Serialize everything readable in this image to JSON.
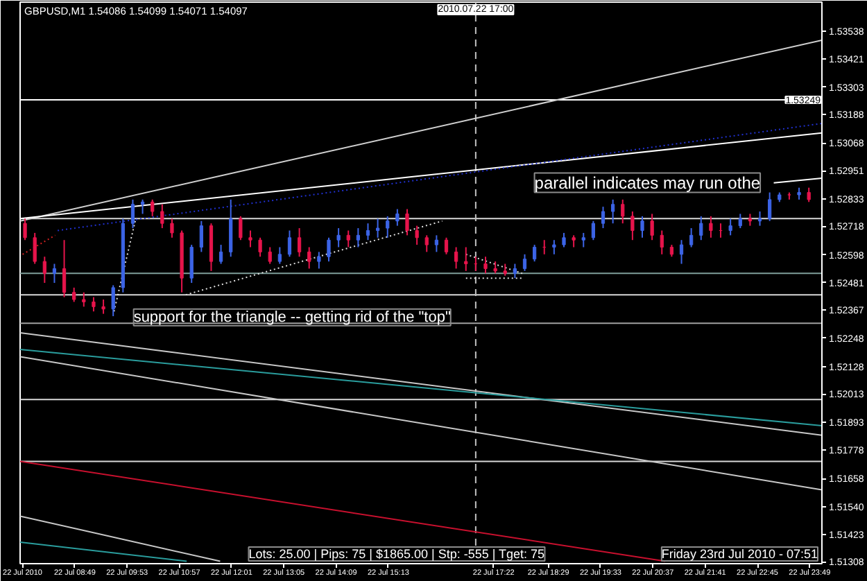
{
  "chart_data": {
    "type": "candlestick",
    "title": "GBPUSD,M1 1.54086 1.54099 1.54071 1.54097",
    "x": [
      "2010-07-22T07:48",
      "2010-07-22T08:00",
      "2010-07-22T08:12",
      "2010-07-22T08:24",
      "2010-07-22T08:36",
      "2010-07-22T08:48",
      "2010-07-22T09:00",
      "2010-07-22T09:12",
      "2010-07-22T09:24",
      "2010-07-22T09:36",
      "2010-07-22T09:48",
      "2010-07-22T10:00",
      "2010-07-22T10:12",
      "2010-07-22T10:24",
      "2010-07-22T10:36",
      "2010-07-22T10:48",
      "2010-07-22T11:00",
      "2010-07-22T11:12",
      "2010-07-22T11:24",
      "2010-07-22T11:36",
      "2010-07-22T11:48",
      "2010-07-22T12:00",
      "2010-07-22T12:12",
      "2010-07-22T12:24",
      "2010-07-22T12:36",
      "2010-07-22T12:48",
      "2010-07-22T13:00",
      "2010-07-22T13:12",
      "2010-07-22T13:24",
      "2010-07-22T13:36",
      "2010-07-22T13:48",
      "2010-07-22T14:00",
      "2010-07-22T14:12",
      "2010-07-22T14:24",
      "2010-07-22T14:36",
      "2010-07-22T14:48",
      "2010-07-22T15:00",
      "2010-07-22T15:12",
      "2010-07-22T15:24",
      "2010-07-22T15:36",
      "2010-07-22T15:48",
      "2010-07-22T16:00",
      "2010-07-22T16:12",
      "2010-07-22T16:24",
      "2010-07-22T16:36",
      "2010-07-22T16:48",
      "2010-07-22T17:00",
      "2010-07-22T17:12",
      "2010-07-22T17:24",
      "2010-07-22T17:36",
      "2010-07-22T17:48",
      "2010-07-22T18:00",
      "2010-07-22T18:12",
      "2010-07-22T18:24",
      "2010-07-22T18:36",
      "2010-07-22T18:48",
      "2010-07-22T19:00",
      "2010-07-22T19:12",
      "2010-07-22T19:24",
      "2010-07-22T19:36",
      "2010-07-22T19:48",
      "2010-07-22T20:00",
      "2010-07-22T20:12",
      "2010-07-22T20:24",
      "2010-07-22T20:36",
      "2010-07-22T20:48",
      "2010-07-22T21:00",
      "2010-07-22T21:12",
      "2010-07-22T21:24",
      "2010-07-22T21:36",
      "2010-07-22T21:48",
      "2010-07-22T22:00",
      "2010-07-22T22:12",
      "2010-07-22T22:24",
      "2010-07-22T22:36",
      "2010-07-22T22:48",
      "2010-07-22T23:00",
      "2010-07-22T23:12",
      "2010-07-22T23:24",
      "2010-07-22T23:36",
      "2010-07-22T23:48"
    ],
    "ohlc": [
      [
        1.5273,
        1.5275,
        1.5266,
        1.5267
      ],
      [
        1.5267,
        1.5269,
        1.5256,
        1.5257
      ],
      [
        1.5257,
        1.5259,
        1.5248,
        1.5252
      ],
      [
        1.5252,
        1.5256,
        1.5248,
        1.5254
      ],
      [
        1.5254,
        1.5266,
        1.5242,
        1.5244
      ],
      [
        1.5244,
        1.5246,
        1.524,
        1.5241
      ],
      [
        1.5241,
        1.5244,
        1.5238,
        1.524
      ],
      [
        1.524,
        1.5242,
        1.5236,
        1.5238
      ],
      [
        1.5238,
        1.5241,
        1.5235,
        1.5237
      ],
      [
        1.5237,
        1.5247,
        1.5234,
        1.5246
      ],
      [
        1.5246,
        1.5275,
        1.5244,
        1.5273
      ],
      [
        1.5273,
        1.5283,
        1.5271,
        1.5281
      ],
      [
        1.5281,
        1.5283,
        1.5277,
        1.5282
      ],
      [
        1.5282,
        1.5283,
        1.5276,
        1.5278
      ],
      [
        1.5278,
        1.5281,
        1.5271,
        1.5273
      ],
      [
        1.5273,
        1.5275,
        1.5267,
        1.5269
      ],
      [
        1.5269,
        1.527,
        1.5244,
        1.525
      ],
      [
        1.525,
        1.5264,
        1.5248,
        1.5263
      ],
      [
        1.5263,
        1.5274,
        1.5261,
        1.5272
      ],
      [
        1.5272,
        1.5273,
        1.5253,
        1.5257
      ],
      [
        1.5257,
        1.5264,
        1.5256,
        1.5261
      ],
      [
        1.5261,
        1.5283,
        1.5259,
        1.5275
      ],
      [
        1.5275,
        1.5276,
        1.5266,
        1.5267
      ],
      [
        1.5267,
        1.527,
        1.5263,
        1.5266
      ],
      [
        1.5266,
        1.5267,
        1.5259,
        1.5261
      ],
      [
        1.5261,
        1.5263,
        1.5256,
        1.5257
      ],
      [
        1.5257,
        1.5263,
        1.5256,
        1.526
      ],
      [
        1.526,
        1.527,
        1.5259,
        1.5267
      ],
      [
        1.5267,
        1.5271,
        1.5259,
        1.5261
      ],
      [
        1.5261,
        1.5263,
        1.5254,
        1.5257
      ],
      [
        1.5257,
        1.5261,
        1.5254,
        1.5259
      ],
      [
        1.5259,
        1.5267,
        1.5257,
        1.5266
      ],
      [
        1.5266,
        1.5271,
        1.5263,
        1.5268
      ],
      [
        1.5268,
        1.527,
        1.5263,
        1.5266
      ],
      [
        1.5266,
        1.5271,
        1.5263,
        1.5268
      ],
      [
        1.5268,
        1.5273,
        1.5266,
        1.527
      ],
      [
        1.527,
        1.5275,
        1.5267,
        1.5271
      ],
      [
        1.5271,
        1.5276,
        1.5267,
        1.5274
      ],
      [
        1.5274,
        1.5279,
        1.5272,
        1.5277
      ],
      [
        1.5277,
        1.5279,
        1.5268,
        1.527
      ],
      [
        1.527,
        1.5272,
        1.5264,
        1.5267
      ],
      [
        1.5267,
        1.5268,
        1.5261,
        1.5264
      ],
      [
        1.5264,
        1.5268,
        1.5261,
        1.5266
      ],
      [
        1.5266,
        1.5267,
        1.526,
        1.5261
      ],
      [
        1.5261,
        1.5263,
        1.5254,
        1.5257
      ],
      [
        1.5257,
        1.5263,
        1.5253,
        1.5256
      ],
      [
        1.5256,
        1.5259,
        1.5253,
        1.5256
      ],
      [
        1.5256,
        1.5259,
        1.5252,
        1.5254
      ],
      [
        1.5254,
        1.5257,
        1.5252,
        1.5253
      ],
      [
        1.5253,
        1.5256,
        1.5251,
        1.5252
      ],
      [
        1.5252,
        1.5256,
        1.525,
        1.5254
      ],
      [
        1.5254,
        1.526,
        1.5253,
        1.5258
      ],
      [
        1.5258,
        1.5264,
        1.5257,
        1.5263
      ],
      [
        1.5263,
        1.5266,
        1.526,
        1.5263
      ],
      [
        1.5263,
        1.5266,
        1.526,
        1.5264
      ],
      [
        1.5264,
        1.5269,
        1.5263,
        1.5267
      ],
      [
        1.5267,
        1.5268,
        1.5263,
        1.5266
      ],
      [
        1.5266,
        1.5269,
        1.5263,
        1.5267
      ],
      [
        1.5267,
        1.5274,
        1.5266,
        1.5273
      ],
      [
        1.5273,
        1.528,
        1.5271,
        1.5278
      ],
      [
        1.5278,
        1.5283,
        1.5273,
        1.5281
      ],
      [
        1.5281,
        1.5283,
        1.5273,
        1.5276
      ],
      [
        1.5276,
        1.5278,
        1.5266,
        1.527
      ],
      [
        1.527,
        1.5276,
        1.5267,
        1.5274
      ],
      [
        1.5274,
        1.5277,
        1.5266,
        1.5268
      ],
      [
        1.5268,
        1.527,
        1.526,
        1.5263
      ],
      [
        1.5263,
        1.5264,
        1.5259,
        1.526
      ],
      [
        1.526,
        1.5266,
        1.5256,
        1.5264
      ],
      [
        1.5264,
        1.5271,
        1.5263,
        1.5268
      ],
      [
        1.5268,
        1.5276,
        1.5266,
        1.5273
      ],
      [
        1.5273,
        1.5276,
        1.5267,
        1.527
      ],
      [
        1.527,
        1.5273,
        1.5267,
        1.527
      ],
      [
        1.527,
        1.5275,
        1.5268,
        1.5272
      ],
      [
        1.5272,
        1.5277,
        1.5271,
        1.5275
      ],
      [
        1.5275,
        1.5277,
        1.5272,
        1.5274
      ],
      [
        1.5274,
        1.5278,
        1.5272,
        1.5275
      ],
      [
        1.5275,
        1.5286,
        1.5274,
        1.5283
      ],
      [
        1.5283,
        1.5286,
        1.5282,
        1.5285
      ],
      [
        1.5285,
        1.5286,
        1.5283,
        1.5285
      ],
      [
        1.5285,
        1.5288,
        1.5283,
        1.5286
      ],
      [
        1.5286,
        1.5288,
        1.5282,
        1.5283
      ]
    ],
    "colors": [
      "#e6144b",
      "#e6144b",
      "#e6144b",
      "#3c64e6",
      "#e6144b",
      "#e6144b",
      "#e6144b",
      "#e6144b",
      "#e6144b",
      "#3c64e6",
      "#3c64e6",
      "#3c64e6",
      "#3c64e6",
      "#e6144b",
      "#e6144b",
      "#e6144b",
      "#e6144b",
      "#3c64e6",
      "#3c64e6",
      "#e6144b",
      "#3c64e6",
      "#3c64e6",
      "#e6144b",
      "#e6144b",
      "#e6144b",
      "#e6144b",
      "#3c64e6",
      "#3c64e6",
      "#e6144b",
      "#e6144b",
      "#3c64e6",
      "#3c64e6",
      "#3c64e6",
      "#e6144b",
      "#3c64e6",
      "#3c64e6",
      "#3c64e6",
      "#3c64e6",
      "#3c64e6",
      "#e6144b",
      "#e6144b",
      "#e6144b",
      "#3c64e6",
      "#e6144b",
      "#e6144b",
      "#e6144b",
      "#e6144b",
      "#e6144b",
      "#e6144b",
      "#e6144b",
      "#3c64e6",
      "#3c64e6",
      "#3c64e6",
      "#e6144b",
      "#3c64e6",
      "#3c64e6",
      "#e6144b",
      "#3c64e6",
      "#3c64e6",
      "#3c64e6",
      "#3c64e6",
      "#e6144b",
      "#e6144b",
      "#3c64e6",
      "#e6144b",
      "#e6144b",
      "#e6144b",
      "#3c64e6",
      "#3c64e6",
      "#3c64e6",
      "#e6144b",
      "#e6144b",
      "#3c64e6",
      "#3c64e6",
      "#e6144b",
      "#3c64e6",
      "#3c64e6",
      "#3c64e6",
      "#e6144b",
      "#3c64e6",
      "#e6144b"
    ],
    "series": [
      {
        "type": "line",
        "x": [
          "2010-07-22T07:42",
          "2010-07-23T00:04"
        ],
        "values": [
          1.5274,
          1.535
        ],
        "color": "#d0d0d0",
        "line_style": "solid"
      },
      {
        "type": "line",
        "x": [
          "2010-07-22T07:42",
          "2010-07-23T00:04"
        ],
        "values": [
          1.5275,
          1.5311
        ],
        "color": "#ffffff",
        "line_style": "solid"
      },
      {
        "type": "line",
        "x": [
          "2010-07-22T08:28",
          "2010-07-23T00:04"
        ],
        "values": [
          1.527,
          1.5315
        ],
        "color": "#2030d0",
        "line_style": "dotted"
      },
      {
        "type": "line",
        "x": [
          "2010-07-22T07:45",
          "2010-07-22T08:25"
        ],
        "values": [
          1.526,
          1.5268
        ],
        "color": "#d02020",
        "line_style": "dotted"
      },
      {
        "type": "line",
        "x": [
          "2010-07-22T23:05",
          "2010-07-23T00:04"
        ],
        "values": [
          1.529,
          1.5292
        ],
        "color": "#ffffff",
        "line_style": "solid"
      },
      {
        "type": "line",
        "x": [
          "2010-07-22T11:05",
          "2010-07-22T16:19"
        ],
        "values": [
          1.5243,
          1.5274
        ],
        "color": "#e0e0e0",
        "line_style": "dotted"
      },
      {
        "type": "line",
        "x": [
          "2010-07-22T09:37",
          "2010-07-22T10:03"
        ],
        "values": [
          1.5236,
          1.5274
        ],
        "color": "#e0e0e0",
        "line_style": "dotted"
      },
      {
        "type": "line",
        "x": [
          "2010-07-22T16:48",
          "2010-07-22T17:57"
        ],
        "values": [
          1.526,
          1.5252
        ],
        "color": "#e0e0e0",
        "line_style": "dotted"
      },
      {
        "type": "line",
        "x": [
          "2010-07-22T16:48",
          "2010-07-22T17:57"
        ],
        "values": [
          1.525,
          1.525
        ],
        "color": "#e0e0e0",
        "line_style": "dotted"
      },
      {
        "type": "line",
        "x": [
          "2010-07-22T07:42",
          "2010-07-23T00:04"
        ],
        "values": [
          1.5227,
          1.5184
        ],
        "color": "#c8c8c8",
        "line_style": "solid"
      },
      {
        "type": "line",
        "x": [
          "2010-07-22T07:42",
          "2010-07-23T00:04"
        ],
        "values": [
          1.522,
          1.5188
        ],
        "color": "#2a9d9d",
        "line_style": "solid"
      },
      {
        "type": "line",
        "x": [
          "2010-07-22T07:42",
          "2010-07-23T00:04"
        ],
        "values": [
          1.5217,
          1.5161
        ],
        "color": "#c8c8c8",
        "line_style": "solid"
      },
      {
        "type": "line",
        "x": [
          "2010-07-22T07:42",
          "2010-07-22T20:52"
        ],
        "values": [
          1.5173,
          1.5131
        ],
        "color": "#c8102e",
        "line_style": "solid"
      },
      {
        "type": "line",
        "x": [
          "2010-07-22T07:42",
          "2010-07-22T11:47"
        ],
        "values": [
          1.515,
          1.5131
        ],
        "color": "#c8c8c8",
        "line_style": "solid"
      },
      {
        "type": "line",
        "x": [
          "2010-07-22T07:42",
          "2010-07-22T11:06"
        ],
        "values": [
          1.5139,
          1.5131
        ],
        "color": "#2a9d9d",
        "line_style": "solid"
      }
    ],
    "xlim": [
      "2010-07-22T07:42",
      "2010-07-23T00:04"
    ],
    "xticks": [
      {
        "value": "2010-07-22T07:45",
        "label": "22 Jul 2010"
      },
      {
        "value": "2010-07-22T08:49",
        "label": "22 Jul 08:49"
      },
      {
        "value": "2010-07-22T09:53",
        "label": "22 Jul 09:53"
      },
      {
        "value": "2010-07-22T10:57",
        "label": "22 Jul 10:57"
      },
      {
        "value": "2010-07-22T12:01",
        "label": "22 Jul 12:01"
      },
      {
        "value": "2010-07-22T13:05",
        "label": "22 Jul 13:05"
      },
      {
        "value": "2010-07-22T14:09",
        "label": "22 Jul 14:09"
      },
      {
        "value": "2010-07-22T15:13",
        "label": "22 Jul 15:13"
      },
      {
        "value": "2010-07-22T17:22",
        "label": "22 Jul 17:22"
      },
      {
        "value": "2010-07-22T18:29",
        "label": "22 Jul 18:29"
      },
      {
        "value": "2010-07-22T19:33",
        "label": "22 Jul 19:33"
      },
      {
        "value": "2010-07-22T20:37",
        "label": "22 Jul 20:37"
      },
      {
        "value": "2010-07-22T21:41",
        "label": "22 Jul 21:41"
      },
      {
        "value": "2010-07-22T22:45",
        "label": "22 Jul 22:45"
      },
      {
        "value": "2010-07-22T23:49",
        "label": "22 Jul 23:49"
      }
    ],
    "ylim": [
      1.513,
      1.5366
    ],
    "yticks": [
      1.53538,
      1.53421,
      1.53303,
      1.53188,
      1.53068,
      1.52951,
      1.52833,
      1.52718,
      1.52598,
      1.52481,
      1.52367,
      1.52248,
      1.52128,
      1.52013,
      1.51893,
      1.51778,
      1.51658,
      {
        "value": 1.5154,
        "label": "1.51540"
      },
      1.51423,
      1.51308
    ],
    "ref_lines": [
      {
        "axis": "y",
        "value": 1.53249,
        "label": "1.53249",
        "color": "#ffffff"
      },
      {
        "axis": "y",
        "value": 1.5275,
        "color": "#d8d8d8"
      },
      {
        "axis": "y",
        "value": 1.5252,
        "color": "#7f9f9a"
      },
      {
        "axis": "y",
        "value": 1.5243,
        "color": "#d8d8d8"
      },
      {
        "axis": "y",
        "value": 1.5231,
        "color": "#a0a0a0"
      },
      {
        "axis": "y",
        "value": 1.5199,
        "color": "#d8d8d8"
      },
      {
        "axis": "y",
        "value": 1.5173,
        "color": "#d8d8d8"
      },
      {
        "axis": "x",
        "value": "2010-07-22T17:00",
        "label": "2010.07.22 17:00",
        "color": "#c0c0c0",
        "line_style": "dashed"
      }
    ],
    "annotations": [
      {
        "text": "support for the triangle -- getting rid of the \"top\"",
        "x": "2010-07-22T10:01",
        "y": 1.523
      },
      "parallel indicates may run othe",
      "Lots: 25.00 | Pips: 75 | $1865.00 | Stp: -555 | Tget: 75",
      "Friday 23rd Jul 2010 - 07:51"
    ]
  }
}
